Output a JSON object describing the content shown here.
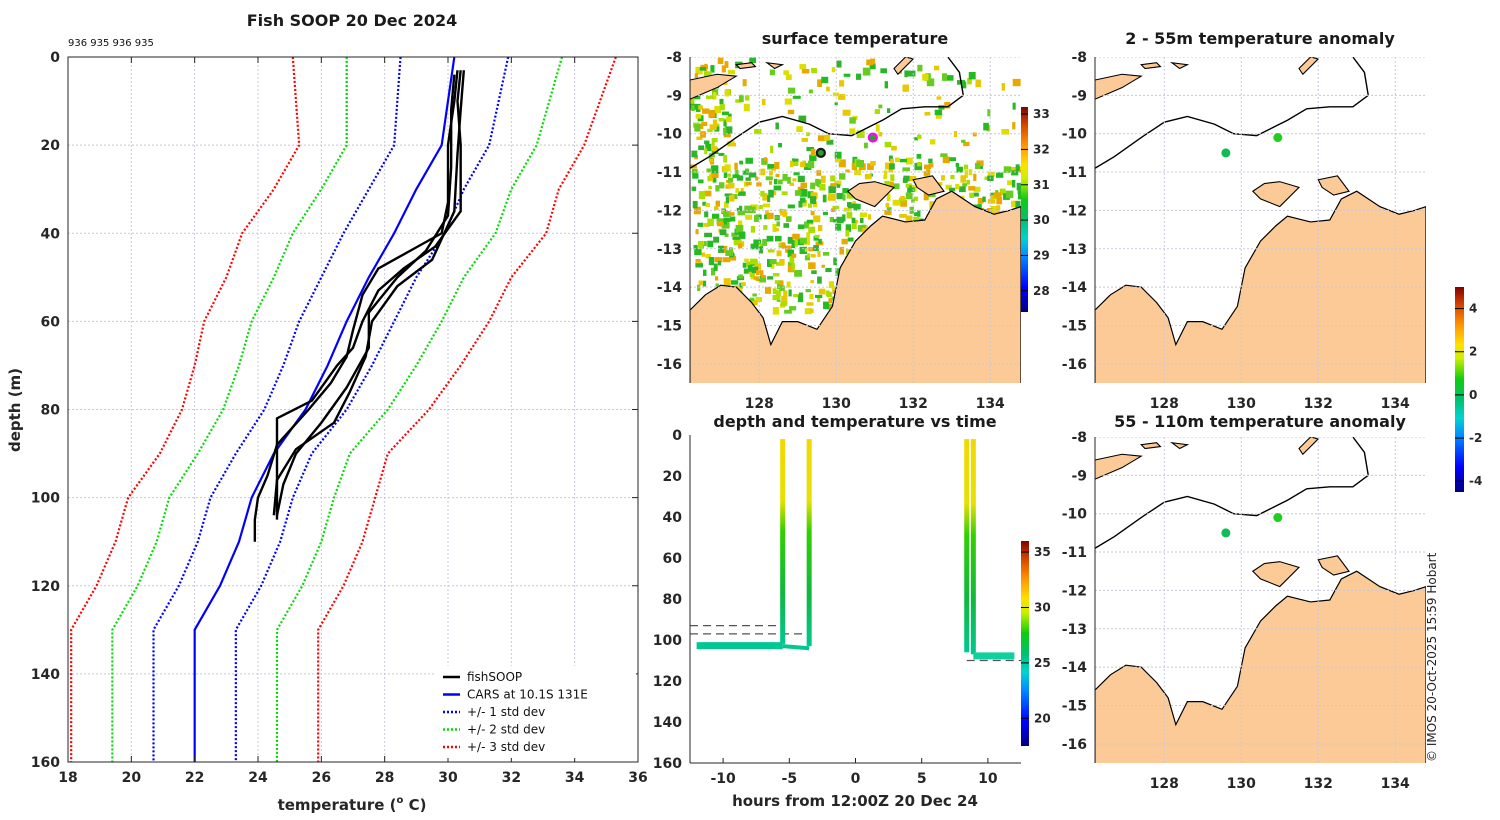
{
  "chart_data": [
    {
      "id": "profile",
      "type": "line",
      "title": "Fish SOOP 20 Dec 2024",
      "annotation": "936 935 936 935",
      "xlabel": "temperature (o C)",
      "xlabel_main": "temperature (",
      "xlabel_sup": "o",
      "xlabel_end": " C)",
      "ylabel": "depth (m)",
      "xlim": [
        18,
        36
      ],
      "ylim": [
        0,
        160
      ],
      "y_reversed": true,
      "xticks": [
        18,
        20,
        22,
        24,
        26,
        28,
        30,
        32,
        34,
        36
      ],
      "yticks": [
        0,
        20,
        40,
        60,
        80,
        100,
        120,
        140,
        160
      ],
      "grid": true,
      "legend_position": "bottom-right",
      "legend": [
        {
          "label": "fishSOOP",
          "color": "#000000",
          "style": "solid"
        },
        {
          "label": "CARS at 10.1S 131E",
          "color": "#0000ff",
          "style": "solid"
        },
        {
          "label": "+/- 1 std dev",
          "color": "#0000ff",
          "style": "dotted"
        },
        {
          "label": "+/- 2 std dev",
          "color": "#00dd00",
          "style": "dotted"
        },
        {
          "label": "+/- 3 std dev",
          "color": "#ff0000",
          "style": "dotted"
        }
      ],
      "depth": [
        0,
        20,
        30,
        40,
        50,
        60,
        70,
        80,
        90,
        100,
        110,
        120,
        130,
        160
      ],
      "cars_mean": [
        30.2,
        29.8,
        29.0,
        28.3,
        27.5,
        26.8,
        26.2,
        25.5,
        24.5,
        23.8,
        23.4,
        22.8,
        22.0,
        22.0
      ],
      "series": [
        {
          "name": "CARS at 10.1S 131E",
          "kind": "mean",
          "color": "#0000ff",
          "std": 0
        },
        {
          "name": "+1 std dev",
          "kind": "std",
          "color": "#0000ff",
          "std": 1
        },
        {
          "name": "-1 std dev",
          "kind": "std",
          "color": "#0000ff",
          "std": -1
        },
        {
          "name": "+2 std dev",
          "kind": "std",
          "color": "#00dd00",
          "std": 2
        },
        {
          "name": "-2 std dev",
          "kind": "std",
          "color": "#00dd00",
          "std": -2
        },
        {
          "name": "+3 std dev",
          "kind": "std",
          "color": "#ff0000",
          "std": 3
        },
        {
          "name": "-3 std dev",
          "kind": "std",
          "color": "#ff0000",
          "std": -3
        }
      ],
      "std_dev": [
        1.7,
        1.5,
        1.5,
        1.6,
        1.5,
        1.5,
        1.4,
        1.3,
        1.2,
        1.3,
        1.3,
        1.3,
        1.3,
        1.3
      ],
      "fish_profiles": [
        {
          "name": "profile 1",
          "points": [
            [
              30.3,
              3
            ],
            [
              30.2,
              10
            ],
            [
              30.0,
              20
            ],
            [
              30.0,
              33
            ],
            [
              29.8,
              40
            ],
            [
              28.8,
              44
            ],
            [
              27.8,
              48
            ],
            [
              27.3,
              54
            ],
            [
              27.0,
              62
            ],
            [
              26.8,
              68
            ],
            [
              26.3,
              74
            ],
            [
              25.6,
              80
            ],
            [
              24.6,
              88
            ],
            [
              24.3,
              95
            ],
            [
              24.0,
              100
            ],
            [
              23.9,
              105
            ],
            [
              23.9,
              110
            ]
          ]
        },
        {
          "name": "profile 2",
          "points": [
            [
              30.4,
              3
            ],
            [
              30.3,
              10
            ],
            [
              30.4,
              20
            ],
            [
              30.4,
              35
            ],
            [
              29.6,
              43
            ],
            [
              28.6,
              48
            ],
            [
              27.8,
              53
            ],
            [
              27.3,
              60
            ],
            [
              27.0,
              66
            ],
            [
              26.5,
              70
            ],
            [
              25.7,
              78
            ],
            [
              24.6,
              82
            ],
            [
              24.6,
              90
            ],
            [
              24.6,
              100
            ],
            [
              24.6,
              105
            ]
          ]
        },
        {
          "name": "profile 3",
          "points": [
            [
              30.2,
              4
            ],
            [
              30.1,
              12
            ],
            [
              30.1,
              25
            ],
            [
              30.0,
              36
            ],
            [
              29.3,
              44
            ],
            [
              28.4,
              50
            ],
            [
              27.5,
              58
            ],
            [
              27.5,
              66
            ],
            [
              26.8,
              75
            ],
            [
              26.0,
              83
            ],
            [
              25.2,
              90
            ],
            [
              24.8,
              97
            ],
            [
              24.6,
              104
            ]
          ]
        },
        {
          "name": "profile 4",
          "points": [
            [
              30.5,
              3
            ],
            [
              30.4,
              12
            ],
            [
              30.3,
              22
            ],
            [
              30.2,
              35
            ],
            [
              29.5,
              46
            ],
            [
              28.4,
              52
            ],
            [
              27.6,
              60
            ],
            [
              27.4,
              68
            ],
            [
              26.9,
              76
            ],
            [
              26.4,
              83
            ],
            [
              25.2,
              89
            ],
            [
              24.6,
              96
            ],
            [
              24.5,
              104
            ]
          ]
        }
      ]
    },
    {
      "id": "sst_map",
      "type": "heatmap",
      "title": "surface temperature",
      "xticks": [
        128,
        130,
        132,
        134
      ],
      "yticks": [
        -8,
        -9,
        -10,
        -11,
        -12,
        -13,
        -14,
        -15,
        -16
      ],
      "xlim": [
        126.2,
        134.8
      ],
      "ylim": [
        -16.5,
        -8
      ],
      "colorbar": {
        "ticks": [
          28,
          29,
          30,
          31,
          32,
          33
        ],
        "range": [
          27.4,
          33.2
        ]
      },
      "markers": [
        {
          "lon": 129.6,
          "lat": -10.5,
          "color": "#2ca02c",
          "edge": "#1a1a1a"
        },
        {
          "lon": 130.95,
          "lat": -10.1,
          "color": "#2ca02c",
          "edge": "#ff00ff"
        }
      ]
    },
    {
      "id": "time_depth",
      "type": "scatter",
      "title": "depth and temperature vs time",
      "xlabel": "hours from 12:00Z 20 Dec 24",
      "xlim": [
        -12.5,
        12.5
      ],
      "ylim": [
        0,
        160
      ],
      "y_reversed": true,
      "xticks": [
        -10,
        -5,
        0,
        5,
        10
      ],
      "yticks": [
        0,
        20,
        40,
        60,
        80,
        100,
        120,
        140,
        160
      ],
      "colorbar": {
        "ticks": [
          20,
          25,
          30,
          35
        ],
        "range": [
          17.5,
          36
        ]
      },
      "casts": [
        {
          "t": -5.5,
          "bottom": 102,
          "bottom_from": -12.0,
          "bottom_depth": 103
        },
        {
          "t": -3.5,
          "bottom": 103
        },
        {
          "t": 8.4,
          "bottom": 106
        },
        {
          "t": 8.9,
          "bottom": 107,
          "bottom_to": 12.0,
          "bottom_depth": 108
        }
      ],
      "bottom_lines": [
        {
          "from": -12.5,
          "to": -5.6,
          "depth": 93
        },
        {
          "from": -12.5,
          "to": -3.4,
          "depth": 97
        },
        {
          "from": 8.4,
          "to": 12.5,
          "depth": 110
        }
      ]
    },
    {
      "id": "anom_shallow",
      "type": "scatter",
      "title": "2 - 55m temperature anomaly",
      "xticks": [
        128,
        130,
        132,
        134
      ],
      "yticks": [
        -8,
        -9,
        -10,
        -11,
        -12,
        -13,
        -14,
        -15,
        -16
      ],
      "markers": [
        {
          "lon": 129.6,
          "lat": -10.5,
          "value": 0.3
        },
        {
          "lon": 130.95,
          "lat": -10.1,
          "value": 0.5
        }
      ]
    },
    {
      "id": "anom_deep",
      "type": "scatter",
      "title": "55 - 110m temperature anomaly",
      "xticks": [
        128,
        130,
        132,
        134
      ],
      "yticks": [
        -8,
        -9,
        -10,
        -11,
        -12,
        -13,
        -14,
        -15,
        -16
      ],
      "markers": [
        {
          "lon": 129.6,
          "lat": -10.5,
          "value": 0.0
        },
        {
          "lon": 130.95,
          "lat": -10.1,
          "value": 0.5
        }
      ]
    }
  ],
  "anomaly_colorbar": {
    "ticks": [
      -4,
      -2,
      0,
      2,
      4
    ],
    "range": [
      -4.5,
      5
    ]
  },
  "credit": "© IMOS 20-Oct-2025 15:59 Hobart",
  "colors": {
    "land": "#fbca96",
    "fish": "#000000",
    "cars": "#0000ff",
    "std1": "#0000ff",
    "std2": "#00dd00",
    "std3": "#ff0000"
  }
}
